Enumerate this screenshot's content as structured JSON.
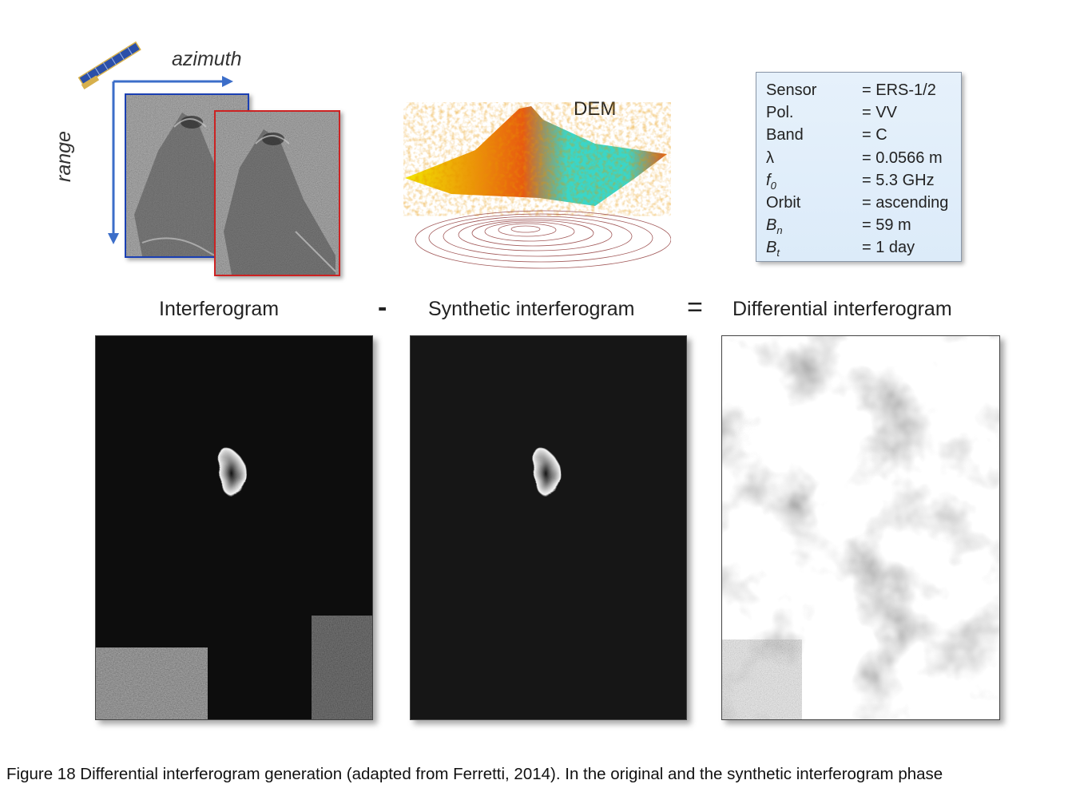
{
  "top": {
    "azimuth_label": "azimuth",
    "range_label": "range",
    "dem_label": "DEM"
  },
  "params": [
    {
      "name": "Sensor",
      "value": "= ERS-1/2"
    },
    {
      "name": "Pol.",
      "value": "= VV"
    },
    {
      "name": "Band",
      "value": "= C"
    },
    {
      "name": "λ",
      "value": "= 0.0566 m"
    },
    {
      "name": "f",
      "sub": "0",
      "value": "= 5.3 GHz"
    },
    {
      "name": "Orbit",
      "value": "= ascending"
    },
    {
      "name": "B",
      "sub": "n",
      "value": "= 59 m"
    },
    {
      "name": "B",
      "sub": "t",
      "value": "= 1 day"
    }
  ],
  "equation": {
    "left_label": "Interferogram",
    "minus": "-",
    "middle_label": "Synthetic interferogram",
    "equals": "=",
    "right_label": "Differential interferogram"
  },
  "caption": "Figure 18 Differential interferogram generation (adapted from Ferretti, 2014). In the original and the synthetic interferogram phase",
  "colors": {
    "blue_frame": "#1a3fb3",
    "red_frame": "#cc2222",
    "param_bg": "#dcebf9",
    "dem_low": "#f2e600",
    "dem_mid": "#e85a10",
    "dem_high": "#3ad6c8"
  },
  "icons": [
    "satellite-icon",
    "azimuth-arrow-icon",
    "range-arrow-icon"
  ]
}
